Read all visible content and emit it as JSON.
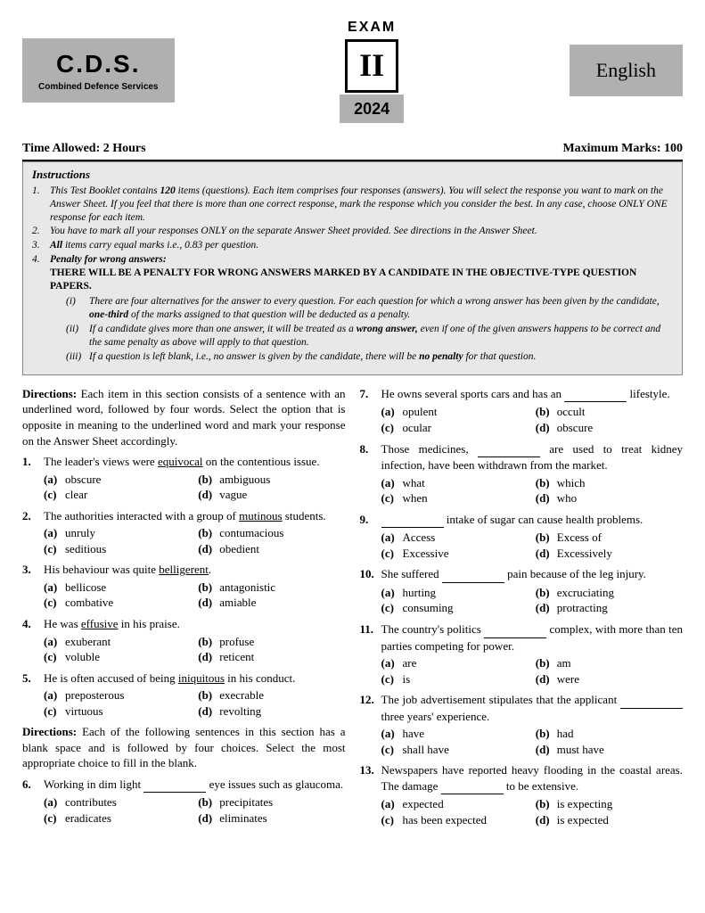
{
  "header": {
    "cds_title": "C.D.S.",
    "cds_sub": "Combined Defence Services",
    "exam_label": "EXAM",
    "roman": "II",
    "year": "2024",
    "subject": "English"
  },
  "meta": {
    "time": "Time Allowed: 2 Hours",
    "marks": "Maximum Marks: 100"
  },
  "instructions": {
    "title": "Instructions",
    "items": [
      {
        "n": "1.",
        "t": "This Test Booklet contains ",
        "b1": "120",
        "t2": " items (questions). Each item comprises four responses (answers). You will select the response you want to mark on the Answer Sheet. If you feel that there is more than one correct response, mark the response which you consider the best. In any case, choose ONLY ONE response for each item."
      },
      {
        "n": "2.",
        "t": "You have to mark all your responses ONLY on the separate Answer Sheet provided. See directions in the Answer Sheet."
      },
      {
        "n": "3.",
        "b0": "All",
        "t": " items carry equal marks i.e., 0.83 per question."
      },
      {
        "n": "4.",
        "penalty": true,
        "head": "Penalty for wrong answers:",
        "bold": "THERE WILL BE A PENALTY FOR WRONG ANSWERS MARKED BY A CANDIDATE IN THE OBJECTIVE-TYPE QUESTION PAPERS.",
        "subs": [
          {
            "n": "(i)",
            "t": "There are four alternatives for the answer to every question. For each question for which a wrong answer has been given by the candidate, ",
            "b": "one-third",
            "t2": " of the marks assigned to that question will be deducted as a penalty."
          },
          {
            "n": "(ii)",
            "t": "If a candidate gives more than one answer, it will be treated as a ",
            "b": "wrong answer,",
            "t2": " even if one of the given answers happens to be correct and the same penalty as above will apply to that question."
          },
          {
            "n": "(iii)",
            "t": "If a question is left blank, i.e., no answer is given by the candidate, there will be ",
            "b": "no penalty",
            "t2": " for that question."
          }
        ]
      }
    ]
  },
  "dir1": "Each item in this section consists of a sentence with an underlined word, followed by four words. Select the option that is opposite in meaning to the underlined word and mark your response on the Answer Sheet accordingly.",
  "dir2": "Each of the following sentences in this section has a blank space and is followed by four choices. Select the most appropriate choice to fill in the blank.",
  "q1": {
    "n": "1.",
    "pre": "The leader's views were ",
    "u": "equivocal",
    "post": " on the contentious issue.",
    "a": "obscure",
    "b": "ambiguous",
    "c": "clear",
    "d": "vague"
  },
  "q2": {
    "n": "2.",
    "pre": "The authorities interacted with a group of ",
    "u": "mutinous",
    "post": " students.",
    "a": "unruly",
    "b": "contumacious",
    "c": "seditious",
    "d": "obedient"
  },
  "q3": {
    "n": "3.",
    "pre": "His behaviour was quite ",
    "u": "belligerent",
    "post": ".",
    "a": "bellicose",
    "b": "antagonistic",
    "c": "combative",
    "d": "amiable"
  },
  "q4": {
    "n": "4.",
    "pre": "He was ",
    "u": "effusive",
    "post": " in his praise.",
    "a": "exuberant",
    "b": "profuse",
    "c": "voluble",
    "d": "reticent"
  },
  "q5": {
    "n": "5.",
    "pre": "He is often accused of being ",
    "u": "iniquitous",
    "post": " in his conduct.",
    "a": "preposterous",
    "b": "execrable",
    "c": "virtuous",
    "d": "revolting"
  },
  "q6": {
    "n": "6.",
    "pre": "Working in dim light ",
    "post": " eye issues such as glaucoma.",
    "a": "contributes",
    "b": "precipitates",
    "c": "eradicates",
    "d": "eliminates"
  },
  "q7": {
    "n": "7.",
    "pre": "He owns several sports cars and has an ",
    "post": " lifestyle.",
    "a": "opulent",
    "b": "occult",
    "c": "ocular",
    "d": "obscure"
  },
  "q8": {
    "n": "8.",
    "pre": "Those medicines, ",
    "post": " are used to treat kidney infection, have been withdrawn from the market.",
    "a": "what",
    "b": "which",
    "c": "when",
    "d": "who"
  },
  "q9": {
    "n": "9.",
    "post": " intake of sugar can cause health problems.",
    "a": "Access",
    "b": "Excess of",
    "c": "Excessive",
    "d": "Excessively"
  },
  "q10": {
    "n": "10.",
    "pre": "She suffered ",
    "post": " pain because of the leg injury.",
    "a": "hurting",
    "b": "excruciating",
    "c": "consuming",
    "d": "protracting"
  },
  "q11": {
    "n": "11.",
    "pre": "The country's politics ",
    "post": " complex, with more than ten parties competing for power.",
    "a": "are",
    "b": "am",
    "c": "is",
    "d": "were"
  },
  "q12": {
    "n": "12.",
    "pre": "The job advertisement stipulates that the applicant ",
    "post": " three years' experience.",
    "a": "have",
    "b": "had",
    "c": "shall have",
    "d": "must have"
  },
  "q13": {
    "n": "13.",
    "pre": "Newspapers have reported heavy flooding in the coastal areas. The damage ",
    "post": " to be extensive.",
    "a": "expected",
    "b": "is expecting",
    "c": "has been expected",
    "d": "is expected"
  }
}
